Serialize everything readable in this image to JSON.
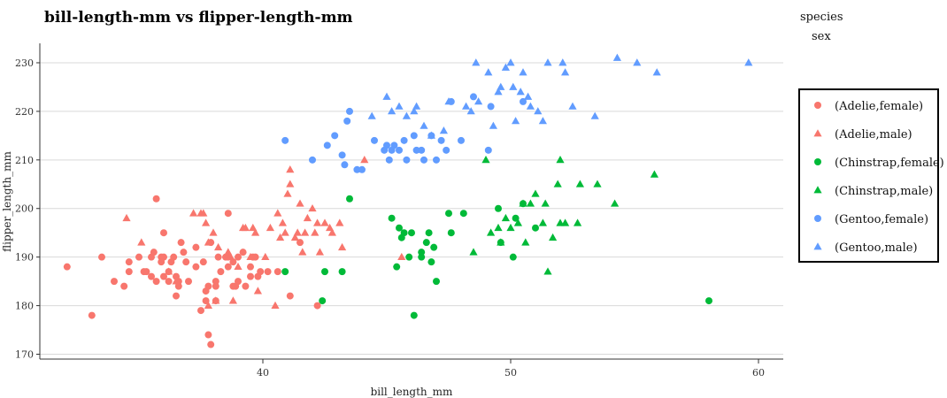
{
  "chart_data": {
    "type": "scatter",
    "title": "bill-length-mm vs flipper-length-mm",
    "xlabel": "bill_length_mm",
    "ylabel": "flipper_length_mm",
    "xlim": [
      31,
      61
    ],
    "ylim": [
      169,
      234
    ],
    "xticks": [
      40,
      50,
      60
    ],
    "yticks": [
      170,
      180,
      190,
      200,
      210,
      220,
      230
    ],
    "grid": "horizontal",
    "legend": {
      "placement": "right",
      "heading_1": "species",
      "heading_2": "sex",
      "entries": [
        "(Adelie,female)",
        "(Adelie,male)",
        "(Chinstrap,female)",
        "(Chinstrap,male)",
        "(Gentoo,female)",
        "(Gentoo,male)"
      ]
    },
    "series": [
      {
        "name": "(Adelie,female)",
        "marker": "circle",
        "color": "#F8766D",
        "points": [
          [
            32.1,
            188
          ],
          [
            33.1,
            178
          ],
          [
            33.5,
            190
          ],
          [
            34.0,
            185
          ],
          [
            34.4,
            184
          ],
          [
            34.6,
            187
          ],
          [
            34.6,
            189
          ],
          [
            35.0,
            190
          ],
          [
            35.2,
            187
          ],
          [
            35.3,
            187
          ],
          [
            35.5,
            186
          ],
          [
            35.5,
            190
          ],
          [
            35.6,
            191
          ],
          [
            35.7,
            185
          ],
          [
            35.7,
            202
          ],
          [
            35.9,
            190
          ],
          [
            35.9,
            189
          ],
          [
            36.0,
            186
          ],
          [
            36.0,
            190
          ],
          [
            36.0,
            195
          ],
          [
            36.2,
            187
          ],
          [
            36.2,
            185
          ],
          [
            36.3,
            189
          ],
          [
            36.4,
            190
          ],
          [
            36.5,
            182
          ],
          [
            36.5,
            186
          ],
          [
            36.6,
            184
          ],
          [
            36.6,
            185
          ],
          [
            36.7,
            193
          ],
          [
            36.8,
            191
          ],
          [
            36.9,
            189
          ],
          [
            37.0,
            185
          ],
          [
            37.3,
            188
          ],
          [
            37.3,
            192
          ],
          [
            37.5,
            179
          ],
          [
            37.6,
            189
          ],
          [
            37.7,
            181
          ],
          [
            37.7,
            183
          ],
          [
            37.8,
            184
          ],
          [
            37.8,
            174
          ],
          [
            37.9,
            172
          ],
          [
            37.9,
            193
          ],
          [
            38.1,
            181
          ],
          [
            38.1,
            184
          ],
          [
            38.1,
            185
          ],
          [
            38.2,
            190
          ],
          [
            38.3,
            187
          ],
          [
            38.5,
            190
          ],
          [
            38.6,
            188
          ],
          [
            38.6,
            190
          ],
          [
            38.6,
            199
          ],
          [
            38.8,
            184
          ],
          [
            38.8,
            189
          ],
          [
            38.9,
            184
          ],
          [
            39.0,
            185
          ],
          [
            39.0,
            190
          ],
          [
            39.2,
            191
          ],
          [
            39.3,
            184
          ],
          [
            39.5,
            186
          ],
          [
            39.5,
            188
          ],
          [
            39.6,
            190
          ],
          [
            39.7,
            190
          ],
          [
            39.8,
            186
          ],
          [
            39.9,
            187
          ],
          [
            40.2,
            187
          ],
          [
            40.6,
            187
          ],
          [
            41.1,
            182
          ],
          [
            41.5,
            193
          ],
          [
            42.2,
            180
          ]
        ]
      },
      {
        "name": "(Adelie,male)",
        "marker": "triangle",
        "color": "#F8766D",
        "points": [
          [
            34.5,
            198
          ],
          [
            35.1,
            193
          ],
          [
            36.2,
            187
          ],
          [
            36.5,
            185
          ],
          [
            37.2,
            199
          ],
          [
            37.5,
            199
          ],
          [
            37.6,
            199
          ],
          [
            37.7,
            197
          ],
          [
            37.8,
            180
          ],
          [
            37.8,
            193
          ],
          [
            38.0,
            195
          ],
          [
            38.1,
            181
          ],
          [
            38.2,
            192
          ],
          [
            38.6,
            191
          ],
          [
            38.7,
            190
          ],
          [
            38.8,
            181
          ],
          [
            39.0,
            188
          ],
          [
            39.2,
            196
          ],
          [
            39.3,
            196
          ],
          [
            39.5,
            190
          ],
          [
            39.6,
            196
          ],
          [
            39.7,
            195
          ],
          [
            39.8,
            183
          ],
          [
            40.1,
            190
          ],
          [
            40.3,
            196
          ],
          [
            40.5,
            180
          ],
          [
            40.6,
            199
          ],
          [
            40.7,
            194
          ],
          [
            40.8,
            197
          ],
          [
            40.9,
            195
          ],
          [
            41.0,
            203
          ],
          [
            41.1,
            205
          ],
          [
            41.1,
            208
          ],
          [
            41.3,
            194
          ],
          [
            41.4,
            195
          ],
          [
            41.5,
            201
          ],
          [
            41.6,
            191
          ],
          [
            41.7,
            195
          ],
          [
            41.8,
            198
          ],
          [
            42.0,
            200
          ],
          [
            42.1,
            195
          ],
          [
            42.2,
            197
          ],
          [
            42.3,
            191
          ],
          [
            42.5,
            197
          ],
          [
            42.7,
            196
          ],
          [
            42.8,
            195
          ],
          [
            43.1,
            197
          ],
          [
            43.2,
            192
          ],
          [
            44.1,
            210
          ],
          [
            45.6,
            190
          ]
        ]
      },
      {
        "name": "(Chinstrap,female)",
        "marker": "circle",
        "color": "#00BA38",
        "points": [
          [
            40.9,
            187
          ],
          [
            42.4,
            181
          ],
          [
            42.5,
            187
          ],
          [
            43.2,
            187
          ],
          [
            43.5,
            202
          ],
          [
            45.2,
            198
          ],
          [
            45.4,
            188
          ],
          [
            45.5,
            196
          ],
          [
            45.6,
            194
          ],
          [
            45.7,
            195
          ],
          [
            45.9,
            190
          ],
          [
            46.0,
            195
          ],
          [
            46.1,
            178
          ],
          [
            46.4,
            190
          ],
          [
            46.4,
            191
          ],
          [
            46.6,
            193
          ],
          [
            46.7,
            195
          ],
          [
            46.8,
            189
          ],
          [
            46.9,
            192
          ],
          [
            47.0,
            185
          ],
          [
            47.5,
            199
          ],
          [
            47.6,
            195
          ],
          [
            48.1,
            199
          ],
          [
            49.5,
            200
          ],
          [
            49.6,
            193
          ],
          [
            50.1,
            190
          ],
          [
            50.2,
            198
          ],
          [
            50.5,
            201
          ],
          [
            51.0,
            196
          ],
          [
            58.0,
            181
          ]
        ]
      },
      {
        "name": "(Chinstrap,male)",
        "marker": "triangle",
        "color": "#00BA38",
        "points": [
          [
            48.5,
            191
          ],
          [
            49.0,
            210
          ],
          [
            49.2,
            195
          ],
          [
            49.5,
            196
          ],
          [
            49.6,
            193
          ],
          [
            49.8,
            198
          ],
          [
            50.0,
            196
          ],
          [
            50.3,
            197
          ],
          [
            50.5,
            201
          ],
          [
            50.6,
            193
          ],
          [
            50.8,
            201
          ],
          [
            51.0,
            203
          ],
          [
            51.3,
            197
          ],
          [
            51.4,
            201
          ],
          [
            51.5,
            187
          ],
          [
            51.7,
            194
          ],
          [
            51.9,
            205
          ],
          [
            52.0,
            197
          ],
          [
            52.0,
            210
          ],
          [
            52.2,
            197
          ],
          [
            52.7,
            197
          ],
          [
            52.8,
            205
          ],
          [
            53.5,
            205
          ],
          [
            54.2,
            201
          ],
          [
            55.8,
            207
          ]
        ]
      },
      {
        "name": "(Gentoo,female)",
        "marker": "circle",
        "color": "#619CFF",
        "points": [
          [
            40.9,
            214
          ],
          [
            42.0,
            210
          ],
          [
            42.6,
            213
          ],
          [
            42.9,
            215
          ],
          [
            43.2,
            211
          ],
          [
            43.3,
            209
          ],
          [
            43.4,
            218
          ],
          [
            43.5,
            220
          ],
          [
            43.8,
            208
          ],
          [
            44.0,
            208
          ],
          [
            44.5,
            214
          ],
          [
            44.9,
            212
          ],
          [
            45.0,
            213
          ],
          [
            45.1,
            210
          ],
          [
            45.2,
            212
          ],
          [
            45.3,
            213
          ],
          [
            45.5,
            212
          ],
          [
            45.7,
            214
          ],
          [
            45.8,
            210
          ],
          [
            46.1,
            215
          ],
          [
            46.2,
            212
          ],
          [
            46.4,
            212
          ],
          [
            46.5,
            210
          ],
          [
            46.8,
            215
          ],
          [
            47.0,
            210
          ],
          [
            47.2,
            214
          ],
          [
            47.4,
            212
          ],
          [
            47.6,
            222
          ],
          [
            48.0,
            214
          ],
          [
            48.5,
            223
          ],
          [
            49.1,
            212
          ],
          [
            49.2,
            221
          ],
          [
            50.5,
            222
          ]
        ]
      },
      {
        "name": "(Gentoo,male)",
        "marker": "triangle",
        "color": "#619CFF",
        "points": [
          [
            44.4,
            219
          ],
          [
            45.0,
            223
          ],
          [
            45.2,
            220
          ],
          [
            45.5,
            221
          ],
          [
            45.8,
            219
          ],
          [
            46.1,
            220
          ],
          [
            46.2,
            221
          ],
          [
            46.5,
            217
          ],
          [
            46.8,
            215
          ],
          [
            47.3,
            216
          ],
          [
            47.5,
            222
          ],
          [
            48.2,
            221
          ],
          [
            48.4,
            220
          ],
          [
            48.6,
            230
          ],
          [
            48.7,
            222
          ],
          [
            49.1,
            228
          ],
          [
            49.3,
            217
          ],
          [
            49.5,
            224
          ],
          [
            49.6,
            225
          ],
          [
            49.8,
            229
          ],
          [
            50.0,
            230
          ],
          [
            50.1,
            225
          ],
          [
            50.2,
            218
          ],
          [
            50.4,
            224
          ],
          [
            50.5,
            228
          ],
          [
            50.7,
            223
          ],
          [
            50.8,
            221
          ],
          [
            51.1,
            220
          ],
          [
            51.3,
            218
          ],
          [
            51.5,
            230
          ],
          [
            52.1,
            230
          ],
          [
            52.2,
            228
          ],
          [
            52.5,
            221
          ],
          [
            53.4,
            219
          ],
          [
            54.3,
            231
          ],
          [
            55.1,
            230
          ],
          [
            55.9,
            228
          ],
          [
            59.6,
            230
          ]
        ]
      }
    ]
  }
}
